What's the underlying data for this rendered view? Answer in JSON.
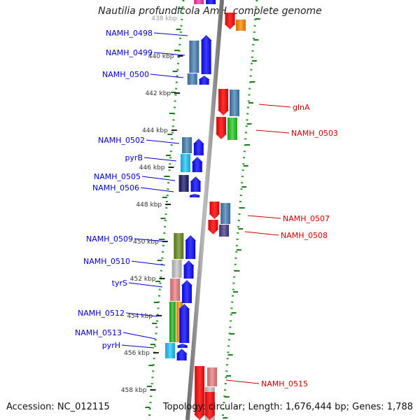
{
  "title": "Nautilia profundicola AmH, complete genome",
  "footer": {
    "accession": "Accession: NC_012115",
    "summary": "Topology: circular; Length: 1,676,444 bp; Genes: 1,788"
  },
  "colors": {
    "forward_strand": "#0000ee",
    "reverse_strand": "#ee0000",
    "forward_label": "#0000cc",
    "reverse_label": "#cc0000",
    "backbone": "#8c8c8c",
    "guide_dots": "#2a9a2a",
    "tick": "#333333"
  },
  "top_clip_label": "438 kbp",
  "scale_ticks": [
    "440 kbp",
    "442 kbp",
    "444 kbp",
    "446 kbp",
    "448 kbp",
    "450 kbp",
    "452 kbp",
    "454 kbp",
    "456 kbp",
    "458 kbp"
  ],
  "genes_forward": [
    "NAMH_0498",
    "NAMH_0499",
    "NAMH_0500",
    "NAMH_0502",
    "pyrB",
    "NAMH_0505",
    "NAMH_0506",
    "NAMH_0509",
    "NAMH_0510",
    "tyrS",
    "NAMH_0512",
    "NAMH_0513",
    "pyrH"
  ],
  "genes_reverse": [
    "glnA",
    "NAMH_0503",
    "NAMH_0507",
    "NAMH_0508",
    "NAMH_0515"
  ]
}
